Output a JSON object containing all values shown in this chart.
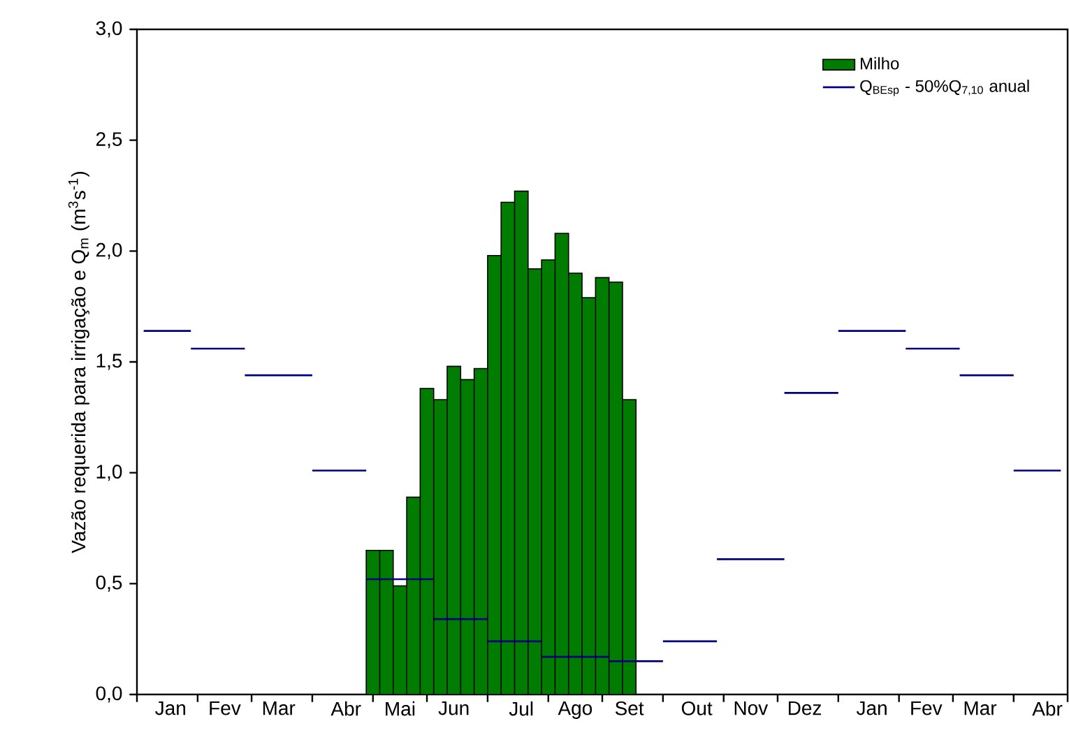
{
  "chart_data": {
    "type": "bar",
    "ylabel": "Vazão requerida para irrigação e Q$_{m}$ (m$^{3}$s$^{-1}$)",
    "categories": [
      null,
      null,
      "Jan",
      null,
      null,
      null,
      "Fev",
      null,
      null,
      null,
      "Mar",
      null,
      null,
      null,
      null,
      "Abr",
      null,
      null,
      null,
      "Mai",
      null,
      null,
      null,
      "Jun",
      null,
      null,
      null,
      null,
      "Jul",
      null,
      null,
      null,
      "Ago",
      null,
      null,
      null,
      "Set",
      null,
      null,
      null,
      null,
      "Out",
      null,
      null,
      null,
      "Nov",
      null,
      null,
      null,
      "Dez",
      null,
      null,
      null,
      null,
      "Jan",
      null,
      null,
      null,
      "Fev",
      null,
      null,
      null,
      "Mar",
      null,
      null,
      null,
      null,
      "Abr",
      null
    ],
    "ylim": [
      0,
      3
    ],
    "yticks": [
      {
        "value": 0,
        "label": "0,0"
      },
      {
        "value": 0.5,
        "label": "0,5"
      },
      {
        "value": 1,
        "label": "1,0"
      },
      {
        "value": 1.5,
        "label": "1,5"
      },
      {
        "value": 2,
        "label": "2,0"
      },
      {
        "value": 2.5,
        "label": "2,5"
      },
      {
        "value": 3,
        "label": "3,0"
      }
    ],
    "legend": "top right",
    "series": [
      {
        "name": "Milho",
        "color": "#007d00",
        "values": [
          null,
          null,
          null,
          null,
          null,
          null,
          null,
          null,
          null,
          null,
          null,
          null,
          null,
          null,
          null,
          null,
          null,
          0.65,
          0.65,
          0.49,
          0.89,
          1.38,
          1.33,
          1.48,
          1.42,
          1.47,
          1.98,
          2.22,
          2.27,
          1.92,
          1.96,
          2.08,
          1.9,
          1.79,
          1.88,
          1.86,
          1.33,
          null,
          null,
          null,
          null,
          null,
          null,
          null,
          null,
          null,
          null,
          null,
          null,
          null,
          null,
          null,
          null,
          null,
          null,
          null,
          null,
          null,
          null,
          null,
          null,
          null,
          null,
          null,
          null,
          null,
          null,
          null,
          null
        ]
      },
      {
        "name": "Q$_{BEsp}$ - 50%Q$_{7,10}$ anual",
        "type": "step",
        "color": "#000080",
        "values": [
          1.64,
          1.64,
          1.64,
          1.64,
          1.56,
          1.56,
          1.56,
          1.56,
          1.44,
          1.44,
          1.44,
          1.44,
          1.44,
          1.01,
          1.01,
          1.01,
          1.01,
          0.52,
          0.52,
          0.52,
          0.52,
          0.52,
          0.34,
          0.34,
          0.34,
          0.34,
          0.24,
          0.24,
          0.24,
          0.24,
          0.17,
          0.17,
          0.17,
          0.17,
          0.17,
          0.15,
          0.15,
          0.15,
          0.15,
          0.24,
          0.24,
          0.24,
          0.24,
          0.61,
          0.61,
          0.61,
          0.61,
          0.61,
          1.36,
          1.36,
          1.36,
          1.36,
          1.64,
          1.64,
          1.64,
          1.64,
          1.64,
          1.56,
          1.56,
          1.56,
          1.56,
          1.44,
          1.44,
          1.44,
          1.44,
          1.01,
          1.01,
          1.01,
          1.01
        ]
      }
    ]
  }
}
